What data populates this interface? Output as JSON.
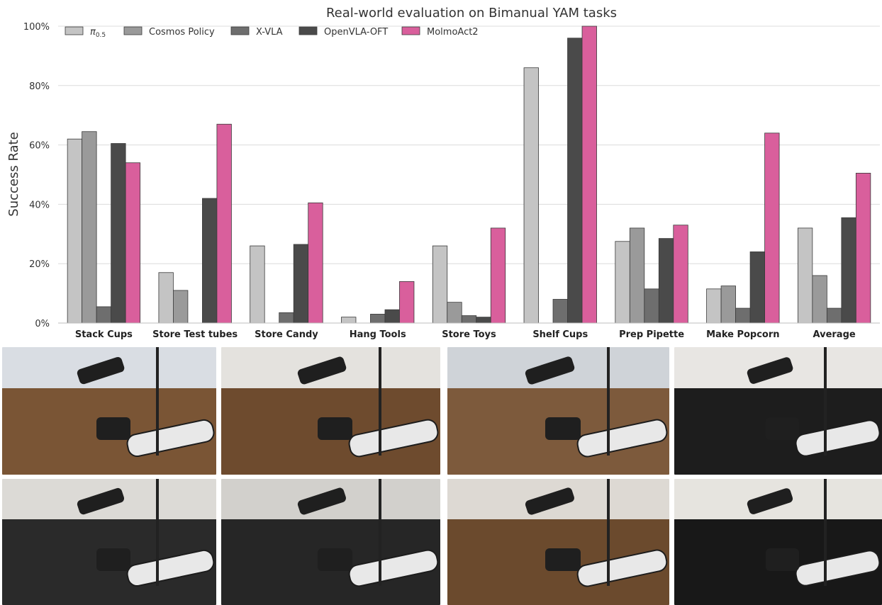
{
  "chart_data": {
    "type": "bar",
    "title": "Real-world evaluation on Bimanual YAM tasks",
    "ylabel": "Success Rate",
    "xlabel": "",
    "ylim": [
      0,
      100
    ],
    "yticks": [
      "0%",
      "20%",
      "40%",
      "60%",
      "80%",
      "100%"
    ],
    "grid": "horizontal",
    "legend_placement": "top-left",
    "categories": [
      "Stack Cups",
      "Store Test tubes",
      "Store Candy",
      "Hang Tools",
      "Store Toys",
      "Shelf Cups",
      "Prep Pipette",
      "Make Popcorn",
      "Average"
    ],
    "series": [
      {
        "name": "π0.5",
        "label_main": "π",
        "label_sub": "0.5",
        "color": "#c4c4c4",
        "values": [
          62,
          17,
          26,
          2,
          26,
          86,
          27.5,
          11.5,
          32
        ]
      },
      {
        "name": "Cosmos Policy",
        "color": "#9a9a9a",
        "values": [
          64.5,
          11,
          0,
          0,
          7,
          0,
          32,
          12.5,
          16
        ]
      },
      {
        "name": "X-VLA",
        "color": "#6e6e6e",
        "values": [
          5.5,
          0,
          3.5,
          3,
          2.5,
          8,
          11.5,
          5,
          5
        ]
      },
      {
        "name": "OpenVLA-OFT",
        "color": "#4a4a4a",
        "values": [
          60.5,
          42,
          26.5,
          4.5,
          2,
          96,
          28.5,
          24,
          35.5
        ]
      },
      {
        "name": "MolmoAct2",
        "color": "#d95f9c",
        "values": [
          54,
          67,
          40.5,
          14,
          32,
          100,
          33,
          64,
          50.5
        ]
      }
    ]
  },
  "photos": [
    {
      "name": "photo-stack-cups",
      "wall": "#d9dde3",
      "table": "#7a5535"
    },
    {
      "name": "photo-colored-cups",
      "wall": "#e4e2de",
      "table": "#6e4b2e"
    },
    {
      "name": "photo-test-tube-rack",
      "wall": "#cfd3d8",
      "table": "#7d5a3c"
    },
    {
      "name": "photo-sink-cups",
      "wall": "#e8e6e3",
      "table": "#1d1d1d"
    },
    {
      "name": "photo-microwave-popcorn",
      "wall": "#dcdad6",
      "table": "#2a2a2a"
    },
    {
      "name": "photo-pegboard-tools",
      "wall": "#d2d0cc",
      "table": "#262626"
    },
    {
      "name": "photo-store-candy",
      "wall": "#ddd9d3",
      "table": "#6b4a2d"
    },
    {
      "name": "photo-shelf-toys",
      "wall": "#e6e4df",
      "table": "#181818"
    }
  ]
}
